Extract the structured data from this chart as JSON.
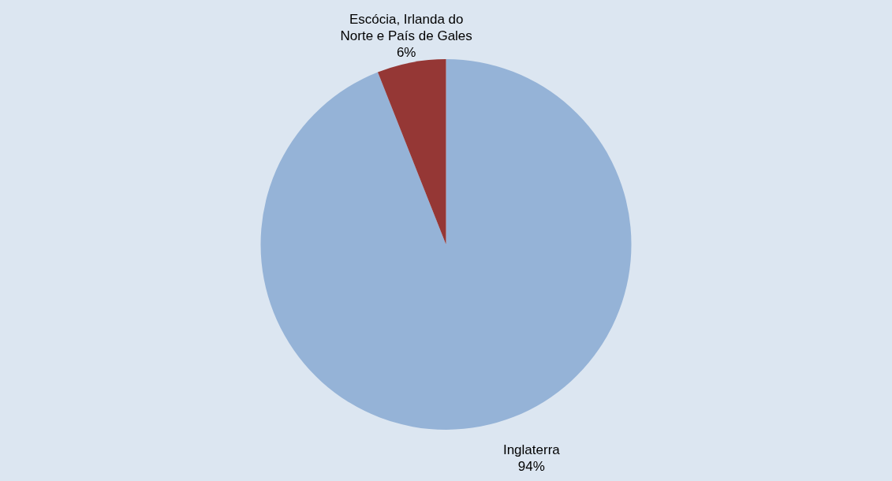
{
  "chart_data": {
    "type": "pie",
    "categories": [
      "Inglaterra",
      "Escócia, Irlanda do Norte e País de Gales"
    ],
    "values": [
      94,
      6
    ],
    "colors": [
      "#95b3d7",
      "#953735"
    ],
    "value_labels": [
      "94%",
      "6%"
    ],
    "legend": false
  }
}
